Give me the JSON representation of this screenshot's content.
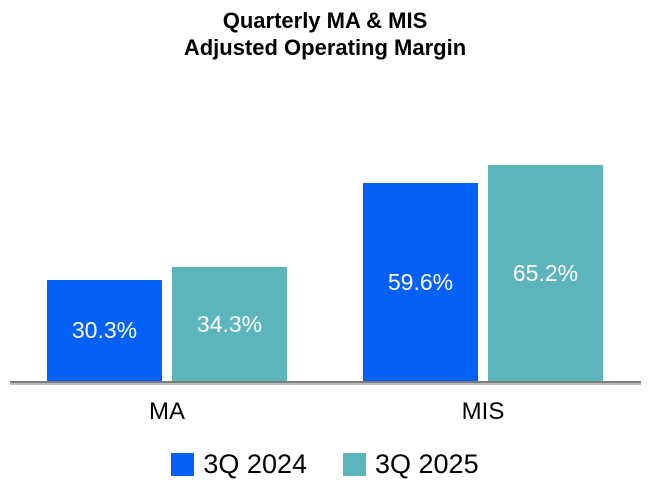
{
  "title": {
    "line1": "Quarterly MA & MIS",
    "line2": "Adjusted Operating Margin"
  },
  "chart_data": {
    "type": "bar",
    "title": "Quarterly MA & MIS Adjusted Operating Margin",
    "categories": [
      "MA",
      "MIS"
    ],
    "series": [
      {
        "name": "3Q 2024",
        "color": "#0561F5",
        "values": [
          30.3,
          59.6
        ],
        "labels": [
          "30.3%",
          "59.6%"
        ]
      },
      {
        "name": "3Q 2025",
        "color": "#5CB5BC",
        "values": [
          34.3,
          65.2
        ],
        "labels": [
          "34.3%",
          "65.2%"
        ]
      }
    ],
    "unit": "%",
    "ylim": [
      0,
      70
    ],
    "y_axis_visible": false,
    "x_axis_line_color": "#7d7d7d",
    "grid": false,
    "bar_label_color": "#FFFFFF",
    "legend_position": "bottom"
  },
  "x_axis": {
    "labels": [
      "MA",
      "MIS"
    ]
  },
  "legend": {
    "items": [
      {
        "label": "3Q 2024",
        "color": "#0561F5"
      },
      {
        "label": "3Q 2025",
        "color": "#5CB5BC"
      }
    ]
  }
}
